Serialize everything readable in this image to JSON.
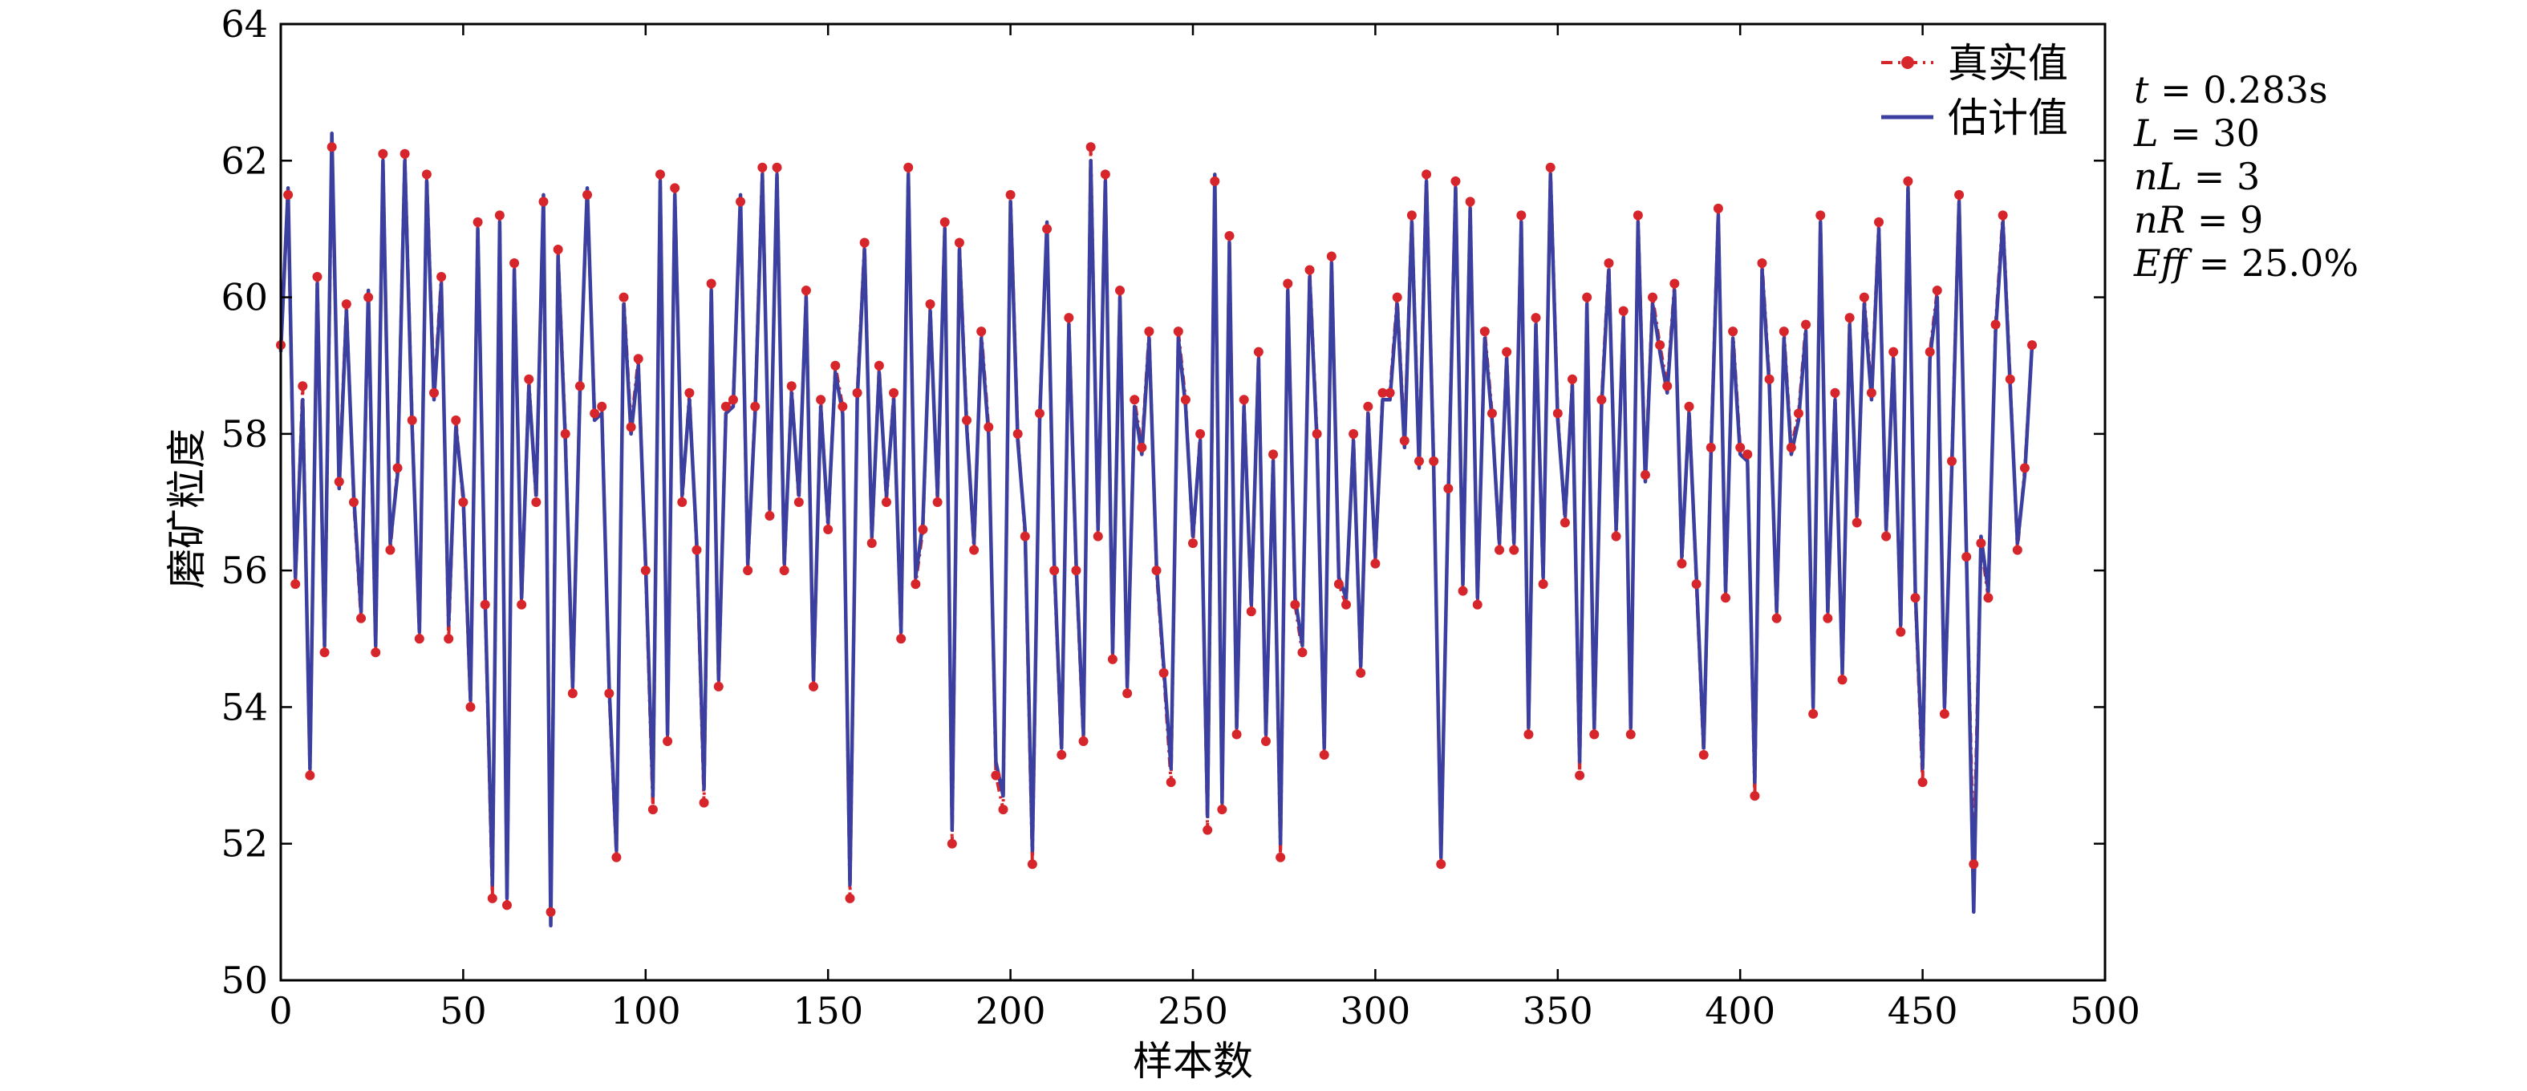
{
  "colors": {
    "true_series": "#d7262b",
    "est_series": "#3a3fa0",
    "axis": "#000000",
    "background": "#ffffff"
  },
  "chart_data": {
    "type": "line",
    "title": "",
    "xlabel": "样本数",
    "ylabel": "磨矿粒度",
    "xlim": [
      0,
      500
    ],
    "ylim": [
      50,
      64
    ],
    "xticks": [
      0,
      50,
      100,
      150,
      200,
      250,
      300,
      350,
      400,
      450,
      500
    ],
    "yticks": [
      50,
      52,
      54,
      56,
      58,
      60,
      62,
      64
    ],
    "grid": false,
    "legend_position": "top-right",
    "x_start": 0,
    "x_step": 2,
    "series": [
      {
        "name": "真实值",
        "style": "dash-dot with circle markers",
        "values": [
          59.3,
          61.5,
          55.8,
          58.7,
          53.0,
          60.3,
          54.8,
          62.2,
          57.3,
          59.9,
          57.0,
          55.3,
          60.0,
          54.8,
          62.1,
          56.3,
          57.5,
          62.1,
          58.2,
          55.0,
          61.8,
          58.6,
          60.3,
          55.0,
          58.2,
          57.0,
          54.0,
          61.1,
          55.5,
          51.2,
          61.2,
          51.1,
          60.5,
          55.5,
          58.8,
          57.0,
          61.4,
          51.0,
          60.7,
          58.0,
          54.2,
          58.7,
          61.5,
          58.3,
          58.4,
          54.2,
          51.8,
          60.0,
          58.1,
          59.1,
          56.0,
          52.5,
          61.8,
          53.5,
          61.6,
          57.0,
          58.6,
          56.3,
          52.6,
          60.2,
          54.3,
          58.4,
          58.5,
          61.4,
          56.0,
          58.4,
          61.9,
          56.8,
          61.9,
          56.0,
          58.7,
          57.0,
          60.1,
          54.3,
          58.5,
          56.6,
          59.0,
          58.4,
          51.2,
          58.6,
          60.8,
          56.4,
          59.0,
          57.0,
          58.6,
          55.0,
          61.9,
          55.8,
          56.6,
          59.9,
          57.0,
          61.1,
          52.0,
          60.8,
          58.2,
          56.3,
          59.5,
          58.1,
          53.0,
          52.5,
          61.5,
          58.0,
          56.5,
          51.7,
          58.3,
          61.0,
          56.0,
          53.3,
          59.7,
          56.0,
          53.5,
          62.2,
          56.5,
          61.8,
          54.7,
          60.1,
          54.2,
          58.5,
          57.8,
          59.5,
          56.0,
          54.5,
          52.9,
          59.5,
          58.5,
          56.4,
          58.0,
          52.2,
          61.7,
          52.5,
          60.9,
          53.6,
          58.5,
          55.4,
          59.2,
          53.5,
          57.7,
          51.8,
          60.2,
          55.5,
          54.8,
          60.4,
          58.0,
          53.3,
          60.6,
          55.8,
          55.5,
          58.0,
          54.5,
          58.4,
          56.1,
          58.6,
          58.6,
          60.0,
          57.9,
          61.2,
          57.6,
          61.8,
          57.6,
          51.7,
          57.2,
          61.7,
          55.7,
          61.4,
          55.5,
          59.5,
          58.3,
          56.3,
          59.2,
          56.3,
          61.2,
          53.6,
          59.7,
          55.8,
          61.9,
          58.3,
          56.7,
          58.8,
          53.0,
          60.0,
          53.6,
          58.5,
          60.5,
          56.5,
          59.8,
          53.6,
          61.2,
          57.4,
          60.0,
          59.3,
          58.7,
          60.2,
          56.1,
          58.4,
          55.8,
          53.3,
          57.8,
          61.3,
          55.6,
          59.5,
          57.8,
          57.7,
          52.7,
          60.5,
          58.8,
          55.3,
          59.5,
          57.8,
          58.3,
          59.6,
          53.9,
          61.2,
          55.3,
          58.6,
          54.4,
          59.7,
          56.7,
          60.0,
          58.6,
          61.1,
          56.5,
          59.2,
          55.1,
          61.7,
          55.6,
          52.9,
          59.2,
          60.1,
          53.9,
          57.6,
          61.5,
          56.2,
          51.7,
          56.4,
          55.6,
          59.6,
          61.2,
          58.8,
          56.3,
          57.5,
          59.3
        ]
      },
      {
        "name": "估计值",
        "style": "solid",
        "values": [
          59.2,
          61.6,
          55.9,
          58.5,
          53.1,
          60.2,
          54.9,
          62.4,
          57.2,
          59.8,
          57.1,
          55.4,
          60.1,
          54.9,
          62.0,
          56.4,
          57.4,
          62.0,
          58.1,
          55.1,
          61.7,
          58.5,
          60.2,
          55.2,
          58.1,
          57.1,
          54.1,
          61.0,
          55.6,
          51.4,
          61.1,
          51.2,
          60.4,
          55.6,
          58.7,
          57.1,
          61.5,
          50.8,
          60.6,
          57.9,
          54.3,
          58.6,
          61.6,
          58.2,
          58.3,
          54.3,
          51.9,
          59.9,
          58.0,
          59.0,
          56.1,
          52.7,
          61.7,
          53.6,
          61.5,
          57.1,
          58.5,
          56.4,
          52.8,
          60.1,
          54.4,
          58.3,
          58.4,
          61.5,
          56.1,
          58.3,
          61.8,
          56.9,
          61.8,
          56.1,
          58.6,
          57.1,
          60.0,
          54.4,
          58.4,
          56.7,
          58.9,
          58.3,
          51.4,
          58.5,
          60.7,
          56.5,
          58.9,
          57.1,
          58.5,
          55.1,
          61.8,
          55.9,
          56.7,
          59.8,
          57.1,
          61.0,
          52.2,
          60.7,
          58.1,
          56.4,
          59.4,
          58.0,
          53.2,
          52.7,
          61.4,
          57.9,
          56.6,
          51.9,
          58.2,
          61.1,
          56.1,
          53.4,
          59.6,
          56.1,
          53.6,
          62.0,
          56.6,
          61.7,
          54.8,
          60.0,
          54.3,
          58.4,
          57.7,
          59.4,
          56.1,
          54.6,
          53.1,
          59.4,
          58.4,
          56.5,
          57.9,
          52.4,
          61.8,
          52.6,
          60.8,
          53.7,
          58.4,
          55.5,
          59.1,
          53.6,
          57.6,
          52.0,
          60.1,
          55.6,
          54.9,
          60.3,
          57.9,
          53.4,
          60.5,
          55.9,
          55.6,
          57.9,
          54.6,
          58.3,
          56.2,
          58.5,
          58.5,
          59.9,
          57.8,
          61.1,
          57.5,
          61.7,
          57.5,
          51.8,
          57.1,
          61.6,
          55.8,
          61.3,
          55.6,
          59.4,
          58.2,
          56.4,
          59.1,
          56.4,
          61.1,
          53.7,
          59.6,
          55.9,
          61.8,
          58.2,
          56.8,
          58.7,
          53.2,
          59.9,
          53.7,
          58.4,
          60.4,
          56.6,
          59.7,
          53.7,
          61.1,
          57.3,
          59.9,
          59.2,
          58.6,
          60.1,
          56.2,
          58.3,
          55.9,
          53.4,
          57.7,
          61.2,
          55.7,
          59.4,
          57.7,
          57.6,
          52.9,
          60.4,
          58.7,
          55.4,
          59.4,
          57.7,
          58.2,
          59.5,
          54.0,
          61.1,
          55.4,
          58.5,
          54.5,
          59.6,
          56.8,
          59.9,
          58.5,
          61.0,
          56.6,
          59.1,
          55.2,
          61.6,
          55.7,
          53.1,
          59.1,
          60.0,
          54.0,
          57.5,
          61.4,
          56.3,
          51.0,
          56.5,
          55.7,
          59.5,
          61.1,
          58.7,
          56.4,
          57.4,
          59.3
        ]
      }
    ],
    "annotations": [
      {
        "var": "t",
        "rest": " = 0.283s"
      },
      {
        "var": "L",
        "rest": " = 30"
      },
      {
        "var": "nL",
        "rest": " = 3"
      },
      {
        "var": "nR",
        "rest": " = 9"
      },
      {
        "var": "Eff",
        "rest": " = 25.0%"
      }
    ]
  }
}
